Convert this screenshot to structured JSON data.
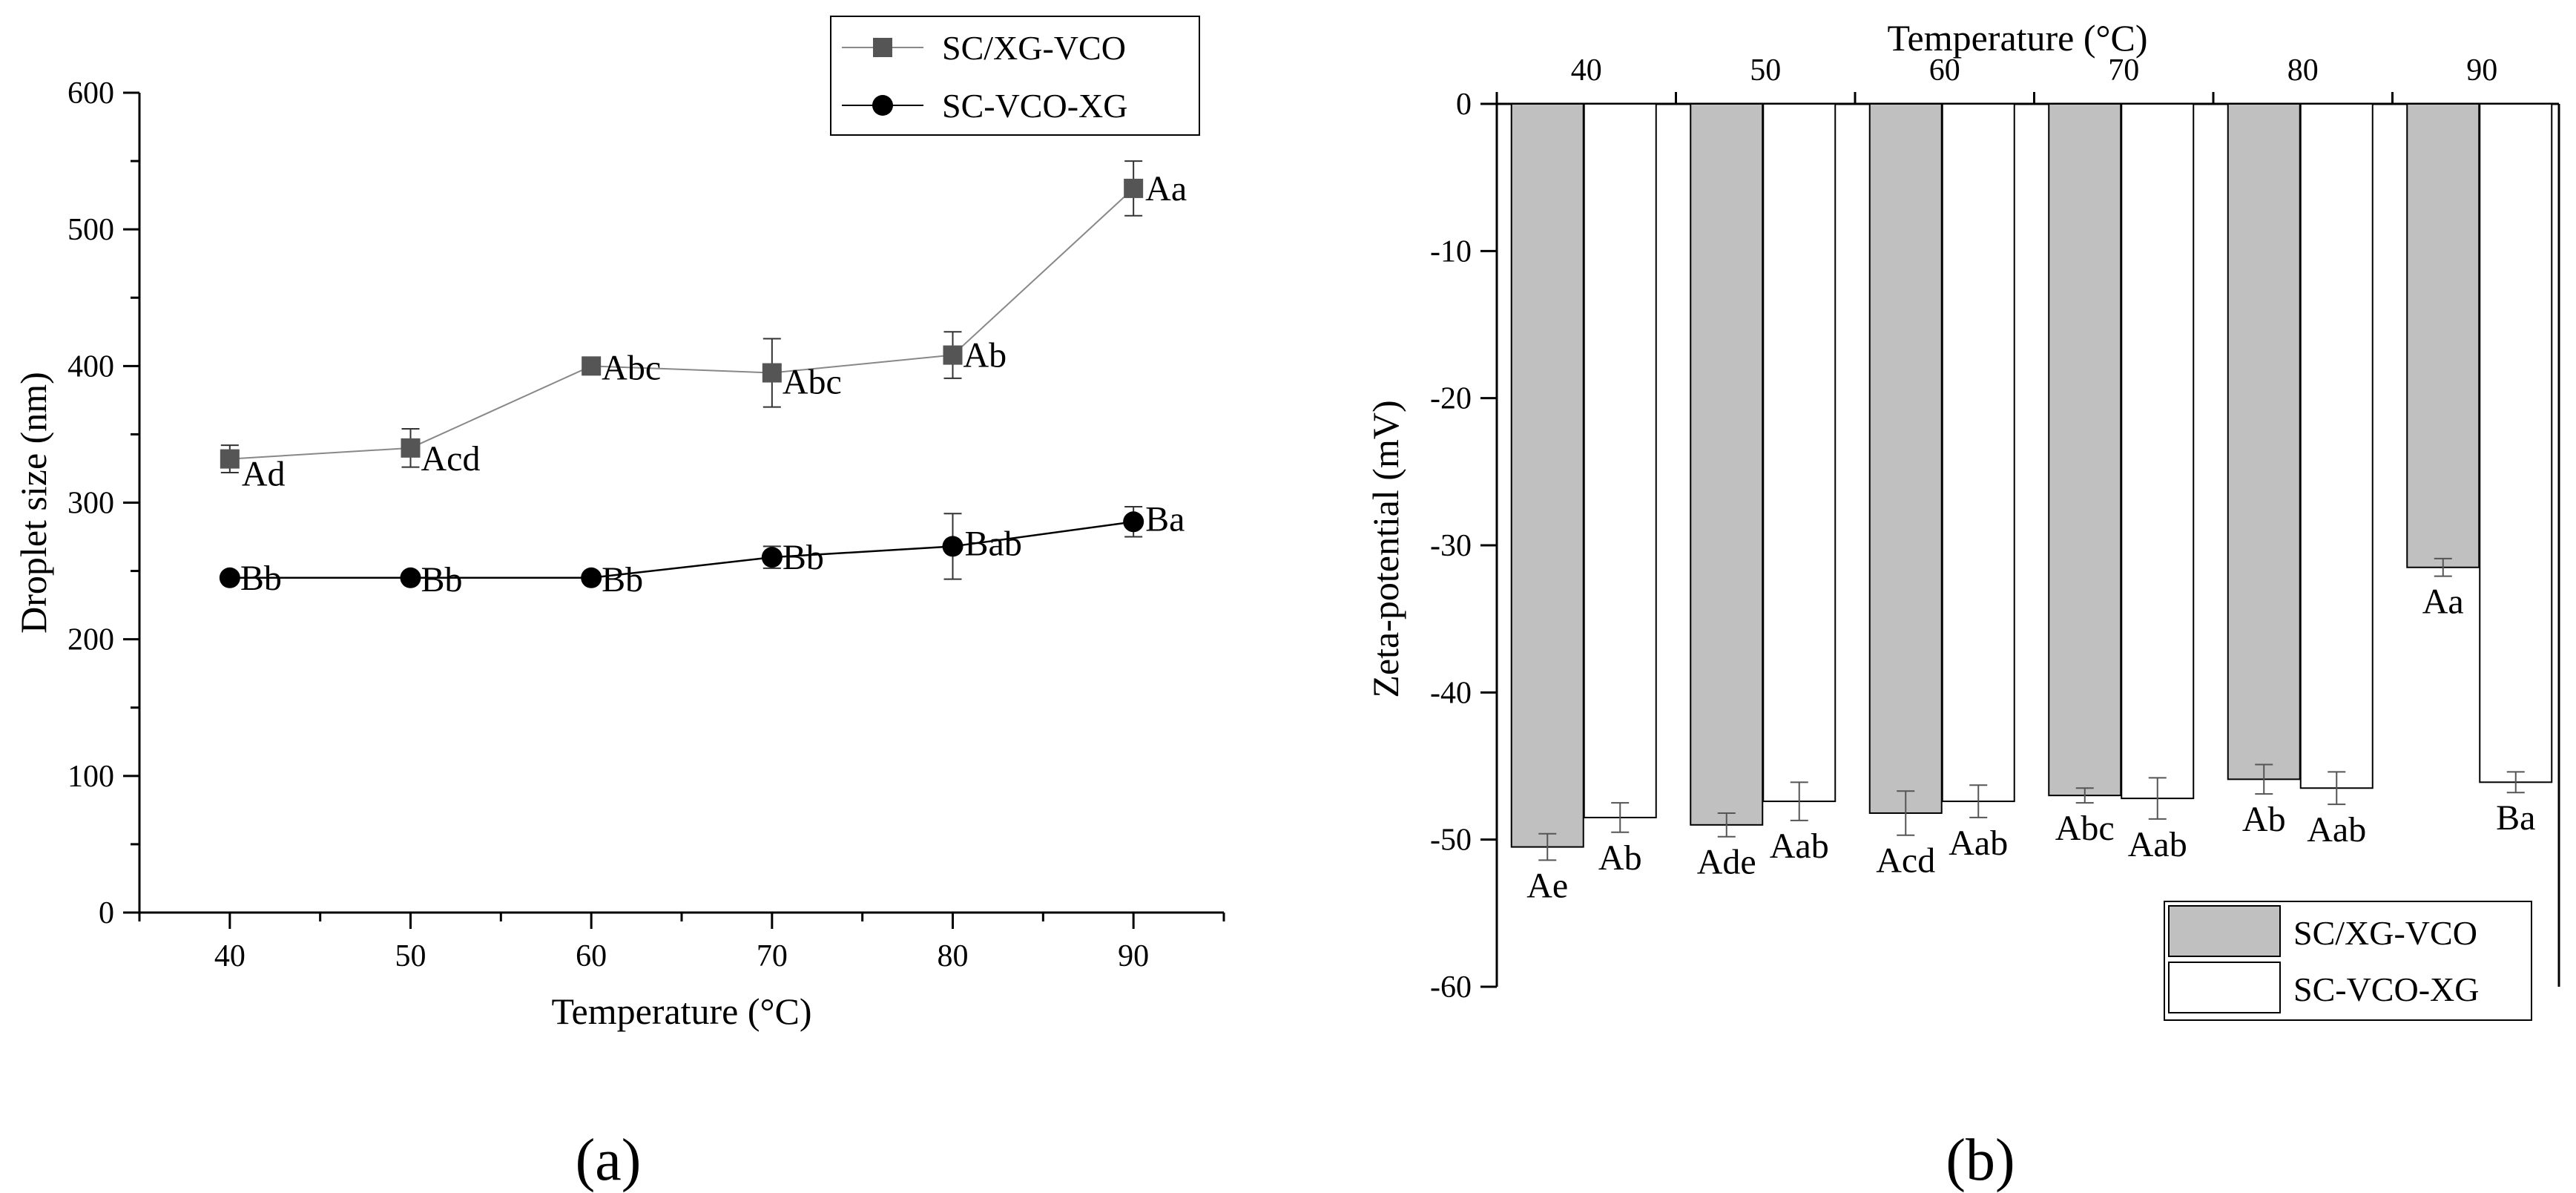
{
  "chart_data": [
    {
      "type": "line",
      "panel_label": "(a)",
      "xlabel": "Temperature (°C)",
      "ylabel": "Droplet size (nm)",
      "x": [
        40,
        50,
        60,
        70,
        80,
        90
      ],
      "xlim": [
        35,
        95
      ],
      "ylim": [
        0,
        600
      ],
      "xticks": [
        "40",
        "50",
        "60",
        "70",
        "80",
        "90"
      ],
      "yticks": [
        "0",
        "100",
        "200",
        "300",
        "400",
        "500",
        "600"
      ],
      "grid": false,
      "legend_position": "top-right",
      "series": [
        {
          "name": "SC/XG-VCO",
          "marker": "square",
          "color": "#555555",
          "values": [
            332,
            340,
            400,
            395,
            408,
            530
          ],
          "errors": [
            10,
            14,
            4,
            25,
            17,
            20
          ],
          "labels": [
            "Ad",
            "Acd",
            "Abc",
            "Abc",
            "Ab",
            "Aa"
          ]
        },
        {
          "name": "SC-VCO-XG",
          "marker": "circle",
          "color": "#000000",
          "values": [
            245,
            245,
            245,
            260,
            268,
            286
          ],
          "errors": [
            3,
            3,
            3,
            8,
            24,
            11
          ],
          "labels": [
            "Bb",
            "Bb",
            "Bb",
            "Bb",
            "Bab",
            "Ba"
          ]
        }
      ]
    },
    {
      "type": "bar",
      "panel_label": "(b)",
      "xlabel": "Temperature (°C)",
      "ylabel": "Zeta-potential (mV)",
      "categories": [
        "40",
        "50",
        "60",
        "70",
        "80",
        "90"
      ],
      "ylim": [
        -60,
        0
      ],
      "yticks": [
        "0",
        "-10",
        "-20",
        "-30",
        "-40",
        "-50",
        "-60"
      ],
      "grid": false,
      "legend_position": "bottom-right",
      "series": [
        {
          "name": "SC/XG-VCO",
          "color": "#c0c0c0",
          "values": [
            -50.5,
            -49.0,
            -48.2,
            -47.0,
            -45.9,
            -31.5
          ],
          "errors": [
            0.9,
            0.8,
            1.5,
            0.5,
            1.0,
            0.6
          ],
          "labels": [
            "Ae",
            "Ade",
            "Acd",
            "Abc",
            "Ab",
            "Aa"
          ]
        },
        {
          "name": "SC-VCO-XG",
          "color": "#ffffff",
          "values": [
            -48.5,
            -47.4,
            -47.4,
            -47.2,
            -46.5,
            -46.1
          ],
          "errors": [
            1.0,
            1.3,
            1.1,
            1.4,
            1.1,
            0.7
          ],
          "labels": [
            "Ab",
            "Aab",
            "Aab",
            "Aab",
            "Aab",
            "Ba"
          ]
        }
      ]
    }
  ]
}
